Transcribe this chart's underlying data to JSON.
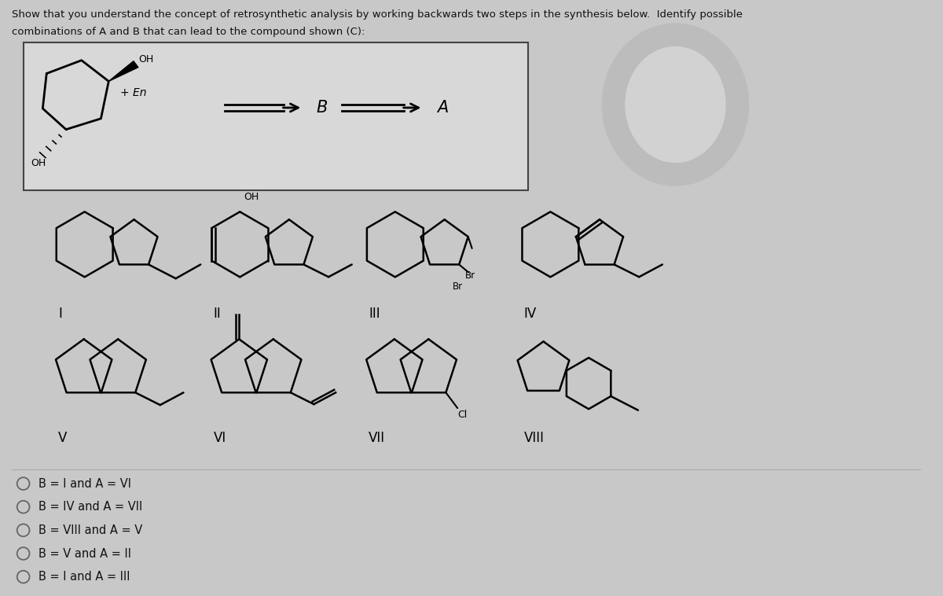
{
  "title_line1": "Show that you understand the concept of retrosynthetic analysis by working backwards two steps in the synthesis below.  Identify possible",
  "title_line2": "combinations of A and B that can lead to the compound shown (C):",
  "background_color": "#c8c8c8",
  "box_facecolor": "#d8d8d8",
  "text_color": "#111111",
  "options": [
    "B = I and A = VI",
    "B = IV and A = VII",
    "B = VIII and A = V",
    "B = V and A = II",
    "B = I and A = III"
  ],
  "radio_color": "#666666",
  "figsize": [
    12.0,
    7.58
  ],
  "dpi": 100
}
